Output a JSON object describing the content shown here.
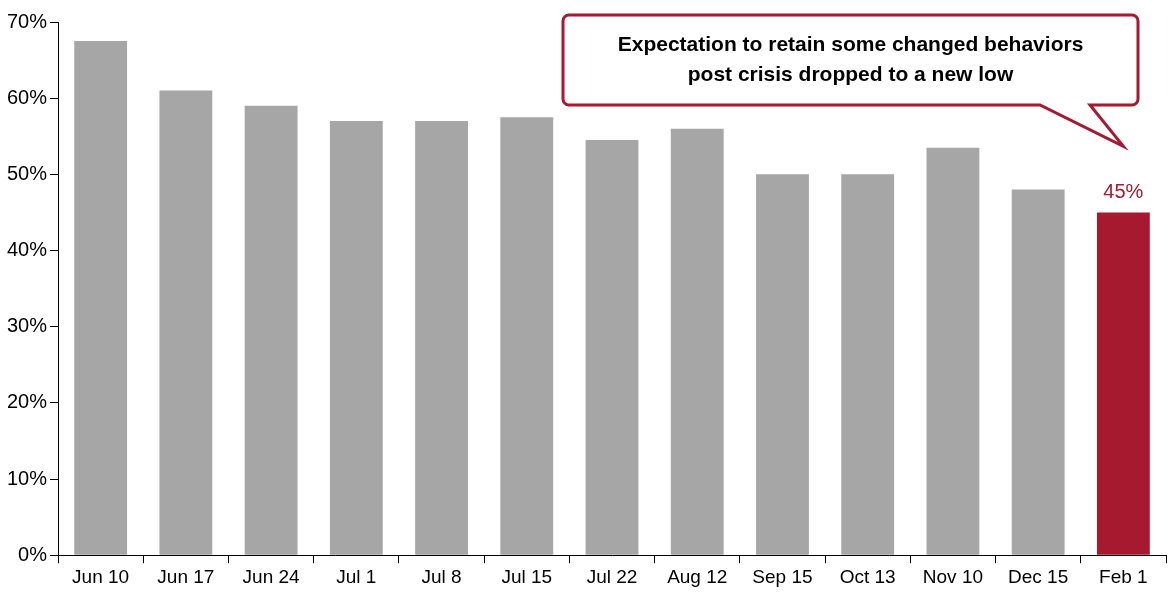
{
  "chart_data": {
    "type": "bar",
    "categories": [
      "Jun 10",
      "Jun 17",
      "Jun 24",
      "Jul 1",
      "Jul 8",
      "Jul 15",
      "Jul 22",
      "Aug 12",
      "Sep 15",
      "Oct 13",
      "Nov 10",
      "Dec 15",
      "Feb 1"
    ],
    "values": [
      67.5,
      61,
      59,
      57,
      57,
      57.5,
      54.5,
      56,
      50,
      50,
      53.5,
      48,
      45
    ],
    "value_labels": [
      null,
      null,
      null,
      null,
      null,
      null,
      null,
      null,
      null,
      null,
      null,
      null,
      "45%"
    ],
    "colors": [
      "#a6a6a6",
      "#a6a6a6",
      "#a6a6a6",
      "#a6a6a6",
      "#a6a6a6",
      "#a6a6a6",
      "#a6a6a6",
      "#a6a6a6",
      "#a6a6a6",
      "#a6a6a6",
      "#a6a6a6",
      "#a6a6a6",
      "#a6192e"
    ],
    "ylim": [
      0,
      70
    ],
    "yticks": [
      {
        "value": 0,
        "label": "0%"
      },
      {
        "value": 10,
        "label": "10%"
      },
      {
        "value": 20,
        "label": "20%"
      },
      {
        "value": 30,
        "label": "30%"
      },
      {
        "value": 40,
        "label": "40%"
      },
      {
        "value": 50,
        "label": "50%"
      },
      {
        "value": 60,
        "label": "60%"
      },
      {
        "value": 70,
        "label": "70%"
      }
    ],
    "grid": false,
    "data_labels": true,
    "annotation": [
      "Expectation to retain some changed behaviors",
      "post crisis dropped to a new low"
    ]
  }
}
